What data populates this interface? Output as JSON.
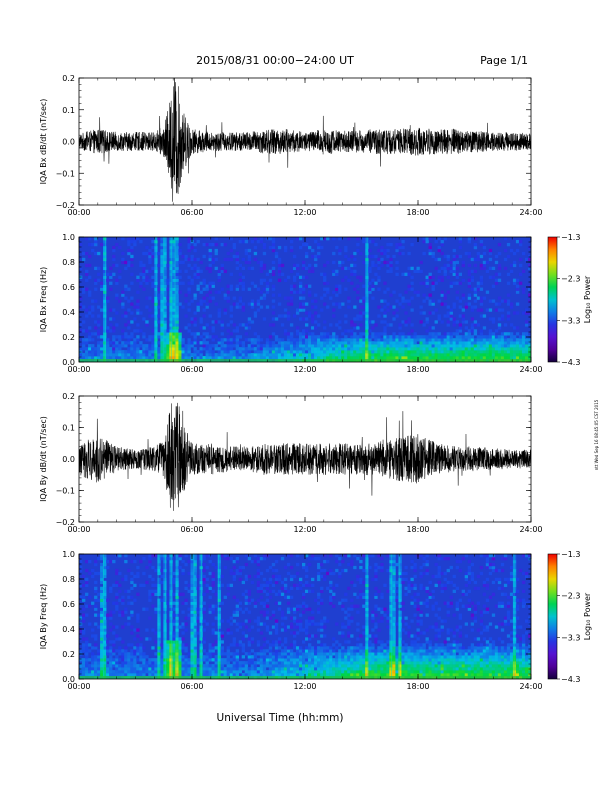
{
  "header": {
    "title": "2015/08/31  00:00−24:00 UT",
    "page": "Page 1/1"
  },
  "x_axis_title": "Universal Time (hh:mm)",
  "stamp": "ntt Wed Sep 16 08:45:05 CST 2015",
  "colors": {
    "trace": "#000000",
    "spectrogram_background": "#1f3fd0"
  },
  "chart_data": [
    {
      "type": "line",
      "name": "bx-derivative",
      "ylabel": "IQA Bx dB/dt (nT/sec)",
      "xlim": [
        0,
        24
      ],
      "ylim": [
        -0.2,
        0.2
      ],
      "x_ticks": [
        0,
        6,
        12,
        18,
        24
      ],
      "x_tick_labels": [
        "00:00",
        "06:00",
        "12:00",
        "18:00",
        "24:00"
      ],
      "y_ticks": [
        -0.2,
        -0.1,
        0.0,
        0.1,
        0.2
      ],
      "y_tick_labels": [
        "−0.2",
        "−0.1",
        "0.0",
        "0.1",
        "0.2"
      ],
      "envelope": {
        "time_h": [
          0,
          1,
          2,
          3,
          4,
          4.5,
          4.8,
          5.0,
          5.2,
          5.5,
          6,
          7,
          8,
          9,
          10,
          11,
          12,
          13,
          14,
          15,
          16,
          17,
          18,
          19,
          20,
          21,
          22,
          23,
          24
        ],
        "amplitude": [
          0.025,
          0.04,
          0.03,
          0.03,
          0.03,
          0.05,
          0.12,
          0.2,
          0.2,
          0.1,
          0.04,
          0.03,
          0.03,
          0.03,
          0.04,
          0.04,
          0.03,
          0.04,
          0.035,
          0.035,
          0.04,
          0.04,
          0.045,
          0.04,
          0.04,
          0.035,
          0.03,
          0.03,
          0.025
        ]
      }
    },
    {
      "type": "heatmap",
      "name": "bx-spectrogram",
      "ylabel": "IQA Bx Freq (Hz)",
      "xlim": [
        0,
        24
      ],
      "ylim": [
        0.0,
        1.0
      ],
      "x_ticks": [
        0,
        6,
        12,
        18,
        24
      ],
      "x_tick_labels": [
        "00:00",
        "06:00",
        "12:00",
        "18:00",
        "24:00"
      ],
      "y_ticks": [
        0.0,
        0.2,
        0.4,
        0.6,
        0.8,
        1.0
      ],
      "y_tick_labels": [
        "0.0",
        "0.2",
        "0.4",
        "0.6",
        "0.8",
        "1.0"
      ],
      "colorbar": {
        "label": "Log₁₀ Power",
        "range": [
          -4.3,
          -1.3
        ],
        "ticks": [
          -1.3,
          -2.3,
          -3.3,
          -4.3
        ],
        "tick_labels": [
          "−1.3",
          "−2.3",
          "−3.3",
          "−4.3"
        ]
      },
      "vertical_bands_h": [
        1.4,
        4.1,
        4.5,
        4.9,
        5.1,
        15.3
      ],
      "enhanced_low_frequency_max_hz": 0.25
    },
    {
      "type": "line",
      "name": "by-derivative",
      "ylabel": "IQA By dB/dt (nT/sec)",
      "xlim": [
        0,
        24
      ],
      "ylim": [
        -0.2,
        0.2
      ],
      "x_ticks": [
        0,
        6,
        12,
        18,
        24
      ],
      "x_tick_labels": [
        "00:00",
        "06:00",
        "12:00",
        "18:00",
        "24:00"
      ],
      "y_ticks": [
        -0.2,
        -0.1,
        0.0,
        0.1,
        0.2
      ],
      "y_tick_labels": [
        "−0.2",
        "−0.1",
        "0.0",
        "0.1",
        "0.2"
      ],
      "envelope": {
        "time_h": [
          0,
          1,
          2,
          3,
          4,
          4.5,
          4.8,
          5.0,
          5.2,
          5.5,
          6,
          7,
          8,
          9,
          10,
          11,
          12,
          13,
          14,
          15,
          16,
          17,
          18,
          19,
          20,
          21,
          22,
          23,
          24
        ],
        "amplitude": [
          0.05,
          0.08,
          0.04,
          0.03,
          0.04,
          0.06,
          0.15,
          0.2,
          0.2,
          0.12,
          0.05,
          0.05,
          0.04,
          0.04,
          0.05,
          0.05,
          0.05,
          0.05,
          0.05,
          0.05,
          0.06,
          0.07,
          0.08,
          0.05,
          0.04,
          0.04,
          0.035,
          0.03,
          0.03
        ]
      }
    },
    {
      "type": "heatmap",
      "name": "by-spectrogram",
      "ylabel": "IQA By Freq (Hz)",
      "xlim": [
        0,
        24
      ],
      "ylim": [
        0.0,
        1.0
      ],
      "x_ticks": [
        0,
        6,
        12,
        18,
        24
      ],
      "x_tick_labels": [
        "00:00",
        "06:00",
        "12:00",
        "18:00",
        "24:00"
      ],
      "y_ticks": [
        0.0,
        0.2,
        0.4,
        0.6,
        0.8,
        1.0
      ],
      "y_tick_labels": [
        "0.0",
        "0.2",
        "0.4",
        "0.6",
        "0.8",
        "1.0"
      ],
      "colorbar": {
        "label": "Log₁₀ Power",
        "range": [
          -4.3,
          -1.3
        ],
        "ticks": [
          -1.3,
          -2.3,
          -3.3,
          -4.3
        ],
        "tick_labels": [
          "−1.3",
          "−2.3",
          "−3.3",
          "−4.3"
        ]
      },
      "vertical_bands_h": [
        1.3,
        4.2,
        4.6,
        4.9,
        5.2,
        6.1,
        6.5,
        7.4,
        15.3,
        16.6,
        17.0,
        23.1
      ],
      "enhanced_low_frequency_max_hz": 0.3
    }
  ]
}
